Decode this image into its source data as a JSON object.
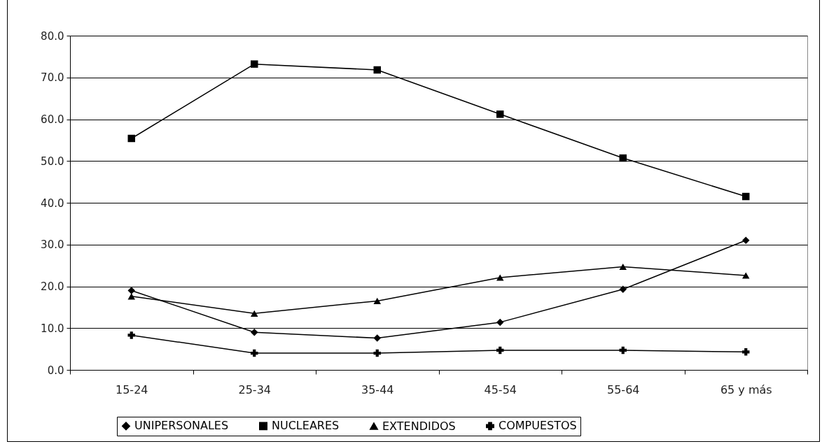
{
  "chart_data": {
    "type": "line",
    "categories": [
      "15-24",
      "25-34",
      "35-44",
      "45-54",
      "55-64",
      "65 y más"
    ],
    "ylim": [
      0,
      80
    ],
    "yticks": [
      {
        "value": 0,
        "label": "0.0"
      },
      {
        "value": 10,
        "label": "10.0"
      },
      {
        "value": 20,
        "label": "20.0"
      },
      {
        "value": 30,
        "label": "30.0"
      },
      {
        "value": 40,
        "label": "40.0"
      },
      {
        "value": 50,
        "label": "50.0"
      },
      {
        "value": 60,
        "label": "60.0"
      },
      {
        "value": 70,
        "label": "70.0"
      },
      {
        "value": 80,
        "label": "80.0"
      }
    ],
    "grid": "y",
    "legend": "bottom",
    "series": [
      {
        "name": "UNIPERSONALES",
        "color": "#000000",
        "marker": "diamond",
        "values": [
          19.0,
          9.0,
          7.6,
          11.4,
          19.3,
          31.0
        ]
      },
      {
        "name": "NUCLEARES",
        "color": "#000000",
        "marker": "square",
        "values": [
          55.4,
          73.2,
          71.8,
          61.2,
          50.7,
          41.5
        ]
      },
      {
        "name": "EXTENDIDOS",
        "color": "#000000",
        "marker": "triangle",
        "values": [
          17.6,
          13.5,
          16.5,
          22.1,
          24.7,
          22.6
        ]
      },
      {
        "name": "COMPUESTOS",
        "color": "#000000",
        "marker": "cross",
        "values": [
          8.3,
          4.0,
          4.0,
          4.7,
          4.7,
          4.3
        ]
      }
    ]
  }
}
